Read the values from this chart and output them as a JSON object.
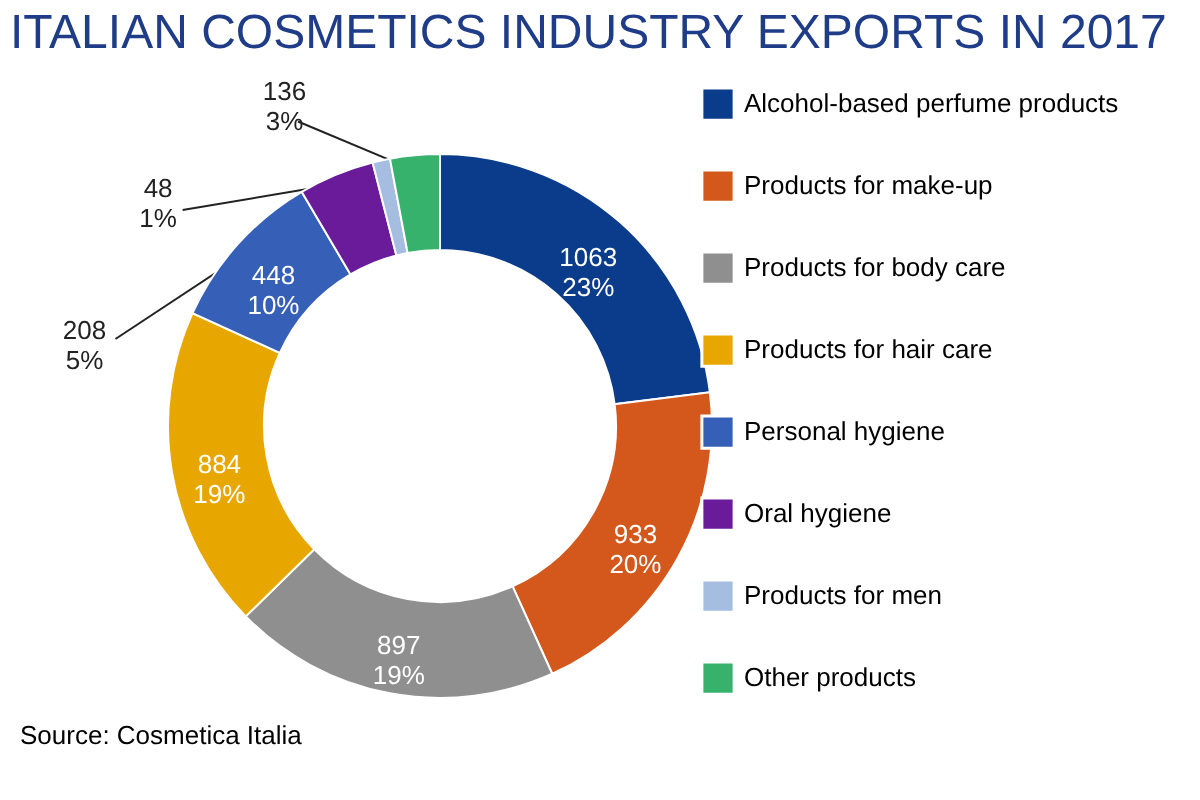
{
  "chart_data": {
    "type": "donut",
    "title": "ITALIAN COSMETICS INDUSTRY EXPORTS IN 2017",
    "categories": [
      "Alcohol-based perfume products",
      "Products for make-up",
      "Products for body care",
      "Products for hair care",
      "Personal hygiene",
      "Oral hygiene",
      "Products for men",
      "Other products"
    ],
    "values": [
      1063,
      933,
      897,
      884,
      448,
      208,
      48,
      136
    ],
    "value_labels": [
      "1063\n23%",
      "933\n20%",
      "897\n19%",
      "884\n19%",
      "448\n10%",
      "208\n5%",
      "48\n1%",
      "136\n3%"
    ],
    "colors": [
      "#0b3c8c",
      "#d4581c",
      "#8f8f8f",
      "#e8a600",
      "#3660b8",
      "#6a1b9a",
      "#a4bde0",
      "#36b26d"
    ],
    "legend": "right",
    "annotations": [
      "Source: Cosmetica Italia"
    ]
  }
}
